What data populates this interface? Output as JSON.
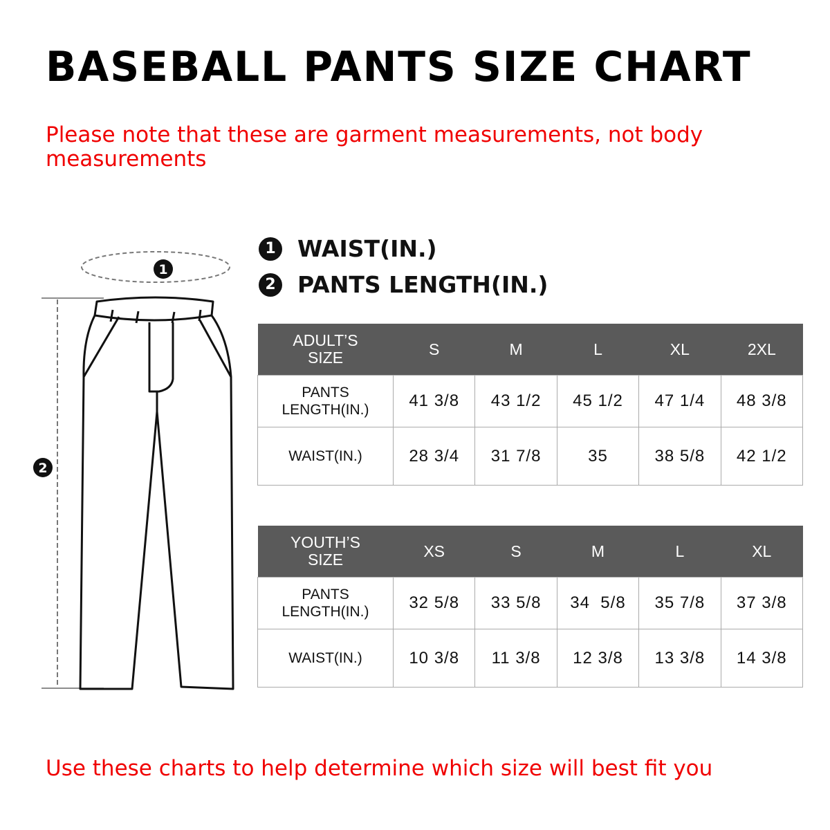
{
  "title": "BASEBALL PANTS SIZE CHART",
  "note": "Please note that these are garment measurements, not body measurements",
  "legend": [
    {
      "number": "1",
      "label": "WAIST(IN.)"
    },
    {
      "number": "2",
      "label": "PANTS LENGTH(IN.)"
    }
  ],
  "diagram": {
    "marker_waist": "1",
    "marker_length": "2"
  },
  "adult_table": {
    "header": [
      "ADULT’S SIZE",
      "S",
      "M",
      "L",
      "XL",
      "2XL"
    ],
    "rows": [
      [
        "PANTS LENGTH(IN.)",
        "41 3/8",
        "43 1/2",
        "45 1/2",
        "47 1/4",
        "48 3/8"
      ],
      [
        "WAIST(IN.)",
        "28 3/4",
        "31 7/8",
        "35",
        "38 5/8",
        "42 1/2"
      ]
    ]
  },
  "youth_table": {
    "header": [
      "YOUTH’S SIZE",
      "XS",
      "S",
      "M",
      "L",
      "XL"
    ],
    "rows": [
      [
        "PANTS LENGTH(IN.)",
        "32 5/8",
        "33 5/8",
        "34  5/8",
        "35 7/8",
        "37 3/8"
      ],
      [
        "WAIST(IN.)",
        "10 3/8",
        "11 3/8",
        "12 3/8",
        "13 3/8",
        "14 3/8"
      ]
    ]
  },
  "footer": "Use these charts to help determine which size will best fit you",
  "colors": {
    "header_bg": "#5a5a5a",
    "accent_red": "#f00000"
  }
}
